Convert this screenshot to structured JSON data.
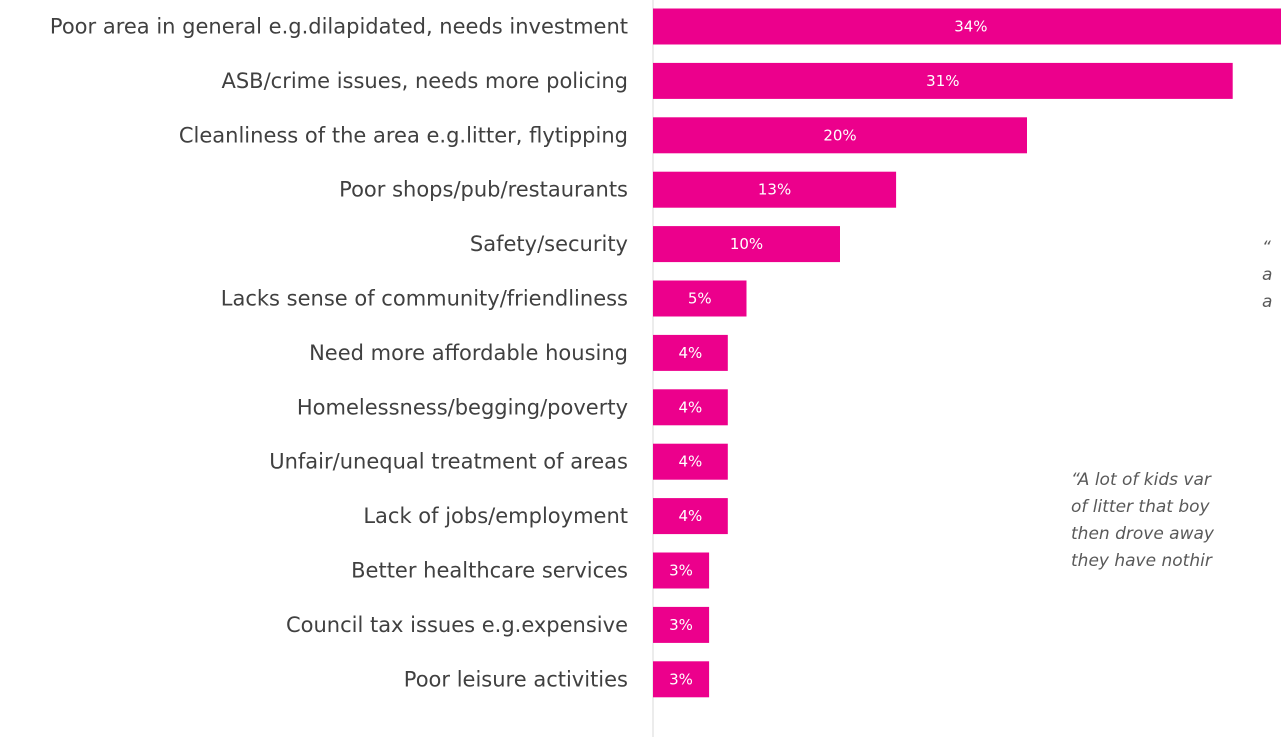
{
  "theme": {
    "bar_color": "#EC008C",
    "axis_color": "#D9D9D9",
    "label_color": "#404040",
    "value_label_color": "#FFFFFF",
    "quote_color": "#595959"
  },
  "chart_data": {
    "type": "bar",
    "orientation": "horizontal",
    "categories": [
      "Poor area in general e.g.dilapidated, needs investment",
      "ASB/crime issues, needs more policing",
      "Cleanliness of the area e.g.litter, flytipping",
      "Poor shops/pub/restaurants",
      "Safety/security",
      "Lacks sense of community/friendliness",
      "Need more affordable housing",
      "Homelessness/begging/poverty",
      "Unfair/unequal treatment of areas",
      "Lack of jobs/employment",
      "Better healthcare services",
      "Council tax issues e.g.expensive",
      "Poor leisure activities"
    ],
    "values": [
      34,
      31,
      20,
      13,
      10,
      5,
      4,
      4,
      4,
      4,
      3,
      3,
      3
    ],
    "value_labels": [
      "34%",
      "31%",
      "20%",
      "13%",
      "10%",
      "5%",
      "4%",
      "4%",
      "4%",
      "4%",
      "3%",
      "3%",
      "3%"
    ],
    "value_format": "percent",
    "title": "",
    "xlabel": "",
    "ylabel": "",
    "grid": false
  },
  "quotes": [
    {
      "lines": [
        "“",
        "a",
        "a"
      ]
    },
    {
      "lines": [
        "“A lot of kids var",
        "of litter that boy",
        "then drove away",
        "they have nothir"
      ]
    }
  ]
}
